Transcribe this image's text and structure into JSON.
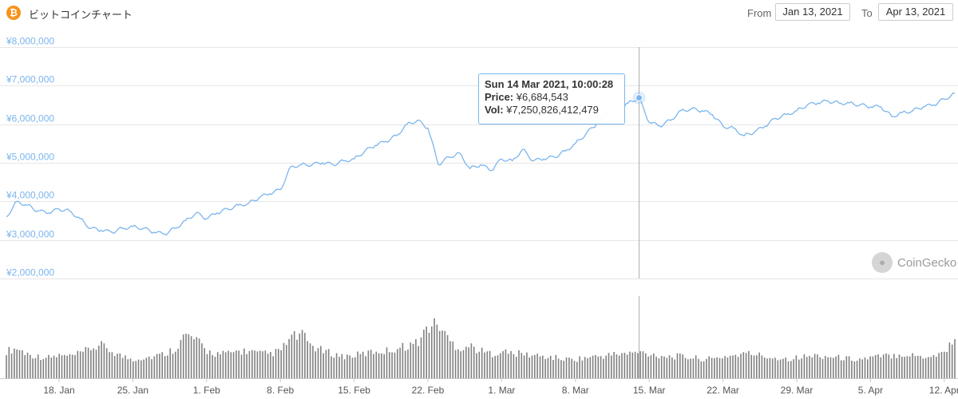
{
  "header": {
    "title": "ビットコインチャート",
    "coin_icon_glyph": "₿",
    "coin_icon_color": "#f7931a",
    "from_label": "From",
    "from_value": "Jan 13, 2021",
    "to_label": "To",
    "to_value": "Apr 13, 2021"
  },
  "tooltip": {
    "date": "Sun 14 Mar 2021, 10:00:28",
    "price_label": "Price:",
    "price_value": "¥6,684,543",
    "vol_label": "Vol:",
    "vol_value": "¥7,250,826,412,479"
  },
  "watermark": {
    "text": "CoinGecko"
  },
  "chart_data": {
    "type": "line",
    "title": "ビットコインチャート",
    "x_range": [
      "2021-01-13",
      "2021-04-13"
    ],
    "x_ticks": [
      {
        "date": "2021-01-18",
        "label": "18. Jan"
      },
      {
        "date": "2021-01-25",
        "label": "25. Jan"
      },
      {
        "date": "2021-02-01",
        "label": "1. Feb"
      },
      {
        "date": "2021-02-08",
        "label": "8. Feb"
      },
      {
        "date": "2021-02-15",
        "label": "15. Feb"
      },
      {
        "date": "2021-02-22",
        "label": "22. Feb"
      },
      {
        "date": "2021-03-01",
        "label": "1. Mar"
      },
      {
        "date": "2021-03-08",
        "label": "8. Mar"
      },
      {
        "date": "2021-03-15",
        "label": "15. Mar"
      },
      {
        "date": "2021-03-22",
        "label": "22. Mar"
      },
      {
        "date": "2021-03-29",
        "label": "29. Mar"
      },
      {
        "date": "2021-04-05",
        "label": "5. Apr"
      },
      {
        "date": "2021-04-12",
        "label": "12. Apr"
      }
    ],
    "y_ticks": [
      {
        "value": 2000000,
        "label": "¥2,000,000"
      },
      {
        "value": 3000000,
        "label": "¥3,000,000"
      },
      {
        "value": 4000000,
        "label": "¥4,000,000"
      },
      {
        "value": 5000000,
        "label": "¥5,000,000"
      },
      {
        "value": 6000000,
        "label": "¥6,000,000"
      },
      {
        "value": 7000000,
        "label": "¥7,000,000"
      },
      {
        "value": 8000000,
        "label": "¥8,000,000"
      }
    ],
    "ylim": [
      2000000,
      8000000
    ],
    "grid": true,
    "series": [
      {
        "kind": "price",
        "color": "#7cb5ec",
        "x": [
          "2021-01-13",
          "2021-01-14",
          "2021-01-15",
          "2021-01-16",
          "2021-01-17",
          "2021-01-18",
          "2021-01-19",
          "2021-01-20",
          "2021-01-21",
          "2021-01-22",
          "2021-01-23",
          "2021-01-24",
          "2021-01-25",
          "2021-01-26",
          "2021-01-27",
          "2021-01-28",
          "2021-01-29",
          "2021-01-30",
          "2021-01-31",
          "2021-02-01",
          "2021-02-02",
          "2021-02-03",
          "2021-02-04",
          "2021-02-05",
          "2021-02-06",
          "2021-02-07",
          "2021-02-08",
          "2021-02-09",
          "2021-02-10",
          "2021-02-11",
          "2021-02-12",
          "2021-02-13",
          "2021-02-14",
          "2021-02-15",
          "2021-02-16",
          "2021-02-17",
          "2021-02-18",
          "2021-02-19",
          "2021-02-20",
          "2021-02-21",
          "2021-02-22",
          "2021-02-23",
          "2021-02-24",
          "2021-02-25",
          "2021-02-26",
          "2021-02-27",
          "2021-02-28",
          "2021-03-01",
          "2021-03-02",
          "2021-03-03",
          "2021-03-04",
          "2021-03-05",
          "2021-03-06",
          "2021-03-07",
          "2021-03-08",
          "2021-03-09",
          "2021-03-10",
          "2021-03-11",
          "2021-03-12",
          "2021-03-13",
          "2021-03-14",
          "2021-03-15",
          "2021-03-16",
          "2021-03-17",
          "2021-03-18",
          "2021-03-19",
          "2021-03-20",
          "2021-03-21",
          "2021-03-22",
          "2021-03-23",
          "2021-03-24",
          "2021-03-25",
          "2021-03-26",
          "2021-03-27",
          "2021-03-28",
          "2021-03-29",
          "2021-03-30",
          "2021-03-31",
          "2021-04-01",
          "2021-04-02",
          "2021-04-03",
          "2021-04-04",
          "2021-04-05",
          "2021-04-06",
          "2021-04-07",
          "2021-04-08",
          "2021-04-09",
          "2021-04-10",
          "2021-04-11",
          "2021-04-12",
          "2021-04-13"
        ],
        "values": [
          3600000,
          4000000,
          3900000,
          3750000,
          3700000,
          3800000,
          3750000,
          3550000,
          3300000,
          3250000,
          3200000,
          3300000,
          3350000,
          3300000,
          3200000,
          3150000,
          3300000,
          3500000,
          3700000,
          3550000,
          3700000,
          3800000,
          3900000,
          3950000,
          4100000,
          4200000,
          4300000,
          4900000,
          4950000,
          4950000,
          5000000,
          4950000,
          5050000,
          5100000,
          5300000,
          5450000,
          5550000,
          5700000,
          6000000,
          6100000,
          5900000,
          4950000,
          5150000,
          5250000,
          4850000,
          4950000,
          4800000,
          5100000,
          5050000,
          5350000,
          5050000,
          5100000,
          5150000,
          5300000,
          5500000,
          5750000,
          6000000,
          6300000,
          6350000,
          6550000,
          6684543,
          6050000,
          5950000,
          6100000,
          6350000,
          6400000,
          6350000,
          6250000,
          5950000,
          5900000,
          5700000,
          5800000,
          5950000,
          6150000,
          6250000,
          6350000,
          6500000,
          6550000,
          6600000,
          6550000,
          6550000,
          6500000,
          6450000,
          6450000,
          6200000,
          6300000,
          6350000,
          6450000,
          6500000,
          6650000,
          6800000
        ]
      },
      {
        "kind": "volume",
        "color": "#808080",
        "relative_values": [
          0.5,
          0.55,
          0.45,
          0.4,
          0.38,
          0.42,
          0.4,
          0.45,
          0.55,
          0.6,
          0.5,
          0.4,
          0.35,
          0.38,
          0.4,
          0.45,
          0.55,
          0.8,
          0.7,
          0.5,
          0.45,
          0.45,
          0.5,
          0.5,
          0.45,
          0.45,
          0.5,
          0.75,
          0.8,
          0.6,
          0.5,
          0.45,
          0.4,
          0.42,
          0.45,
          0.5,
          0.5,
          0.55,
          0.6,
          0.65,
          0.95,
          1.0,
          0.7,
          0.55,
          0.6,
          0.5,
          0.45,
          0.5,
          0.45,
          0.45,
          0.42,
          0.4,
          0.38,
          0.35,
          0.35,
          0.38,
          0.4,
          0.42,
          0.45,
          0.45,
          0.48,
          0.45,
          0.42,
          0.4,
          0.4,
          0.38,
          0.36,
          0.35,
          0.4,
          0.42,
          0.45,
          0.45,
          0.4,
          0.38,
          0.36,
          0.38,
          0.4,
          0.42,
          0.4,
          0.38,
          0.36,
          0.35,
          0.38,
          0.4,
          0.42,
          0.45,
          0.42,
          0.4,
          0.42,
          0.48,
          0.75
        ]
      }
    ],
    "highlight": {
      "date": "2021-03-14",
      "value": 6684543
    }
  }
}
